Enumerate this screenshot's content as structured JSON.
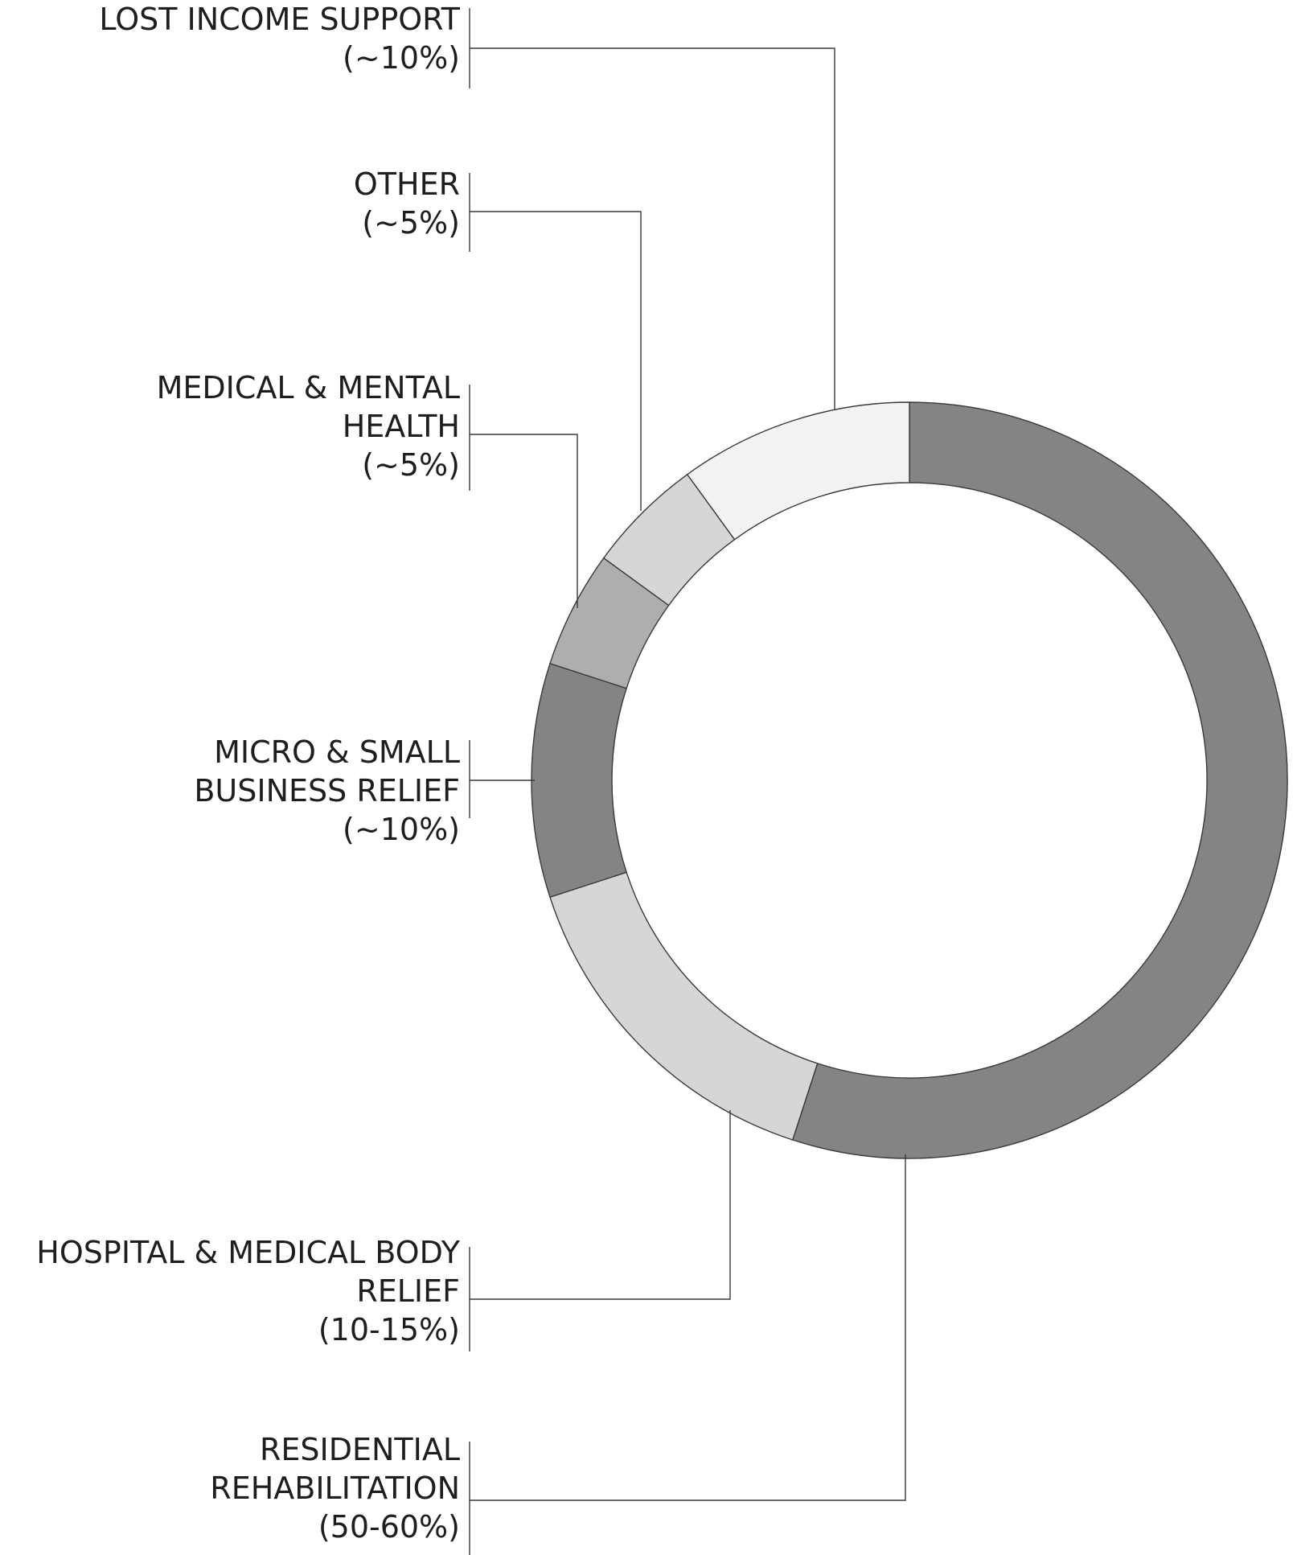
{
  "chart_data": {
    "type": "pie",
    "donut": true,
    "grid": false,
    "legend": "none",
    "slices": [
      {
        "lines": [
          "RESIDENTIAL",
          "REHABILITATION",
          "(50-60%)"
        ],
        "value": 55,
        "color": "#848484"
      },
      {
        "lines": [
          "HOSPITAL & MEDICAL BODY",
          "RELIEF",
          "(10-15%)"
        ],
        "value": 15,
        "color": "#d6d6d6"
      },
      {
        "lines": [
          "MICRO & SMALL",
          "BUSINESS RELIEF",
          "(~10%)"
        ],
        "value": 10,
        "color": "#848484"
      },
      {
        "lines": [
          "MEDICAL & MENTAL",
          "HEALTH",
          "(~5%)"
        ],
        "value": 5,
        "color": "#aeaeae"
      },
      {
        "lines": [
          "OTHER",
          "(~5%)"
        ],
        "value": 5,
        "color": "#d6d6d6"
      },
      {
        "lines": [
          "LOST INCOME SUPPORT",
          "(~10%)"
        ],
        "value": 10,
        "color": "#f3f3f3"
      }
    ]
  }
}
